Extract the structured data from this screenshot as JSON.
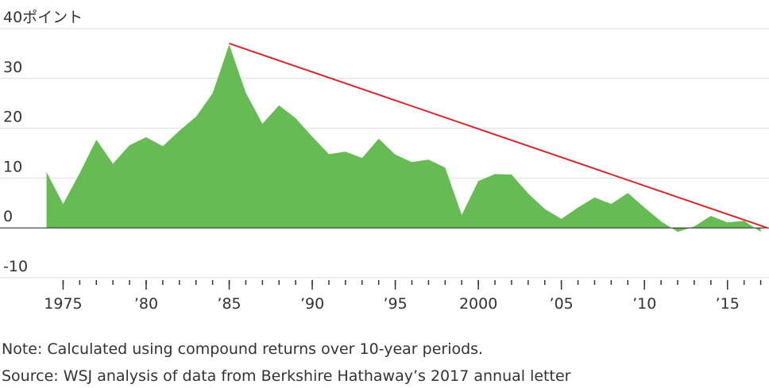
{
  "chart_data": {
    "type": "area",
    "color": "#66bb55",
    "x": [
      1974,
      1975,
      1976,
      1977,
      1978,
      1979,
      1980,
      1981,
      1982,
      1983,
      1984,
      1985,
      1986,
      1987,
      1988,
      1989,
      1990,
      1991,
      1992,
      1993,
      1994,
      1995,
      1996,
      1997,
      1998,
      1999,
      2000,
      2001,
      2002,
      2003,
      2004,
      2005,
      2006,
      2007,
      2008,
      2009,
      2010,
      2011,
      2012,
      2013,
      2014,
      2015,
      2016,
      2017
    ],
    "values": [
      11.2,
      4.8,
      11,
      17.7,
      12.9,
      16.6,
      18.2,
      16.4,
      19.5,
      22.3,
      27,
      36.8,
      27.1,
      20.9,
      24.6,
      22,
      18.3,
      14.8,
      15.3,
      14,
      17.9,
      14.7,
      13.2,
      13.7,
      12.1,
      2.6,
      9.4,
      10.8,
      10.7,
      6.9,
      3.8,
      1.8,
      4.1,
      6.1,
      4.8,
      7,
      4.1,
      1.3,
      -0.8,
      0.3,
      2.4,
      1.1,
      1.4,
      -0.8
    ],
    "trend_line": {
      "color": "#d9262b",
      "x": [
        1985,
        2017.4
      ],
      "values": [
        37,
        0
      ]
    },
    "xlim": [
      1971.2,
      2017.5
    ],
    "ylim": [
      -10,
      40
    ],
    "yticks": [
      {
        "value": 40,
        "label": "40ポイント"
      },
      30,
      20,
      10,
      0,
      -10
    ],
    "xticks": [
      1975,
      {
        "value": 1980,
        "label": "’80"
      },
      {
        "value": 1985,
        "label": "’85"
      },
      {
        "value": 1990,
        "label": "’90"
      },
      {
        "value": 1995,
        "label": "’95"
      },
      2000,
      {
        "value": 2005,
        "label": "’05"
      },
      {
        "value": 2010,
        "label": "’10"
      },
      {
        "value": 2015,
        "label": "’15"
      }
    ],
    "minor_xticks": [
      1975,
      1976,
      1977,
      1978,
      1979,
      1980,
      1981,
      1982,
      1983,
      1984,
      1985,
      1986,
      1987,
      1988,
      1989,
      1990,
      1991,
      1992,
      1993,
      1994,
      1995,
      1996,
      1997,
      1998,
      1999,
      2000,
      2001,
      2002,
      2003,
      2004,
      2005,
      2006,
      2007,
      2008,
      2009,
      2010,
      2011,
      2012,
      2013,
      2014,
      2015,
      2016,
      2017
    ],
    "grid": true,
    "notes": [
      "Note: Calculated using compound returns over 10-year periods.",
      "Source: WSJ analysis of data from Berkshire Hathaway’s 2017 annual letter"
    ]
  }
}
